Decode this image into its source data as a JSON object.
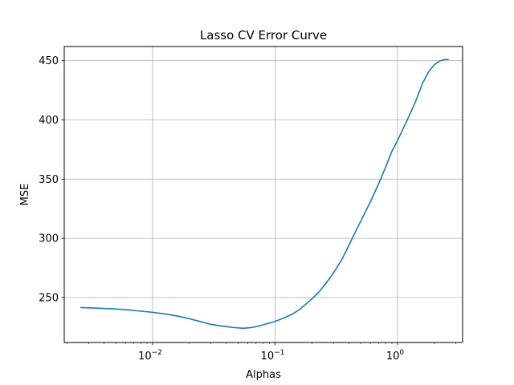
{
  "chart_data": {
    "type": "line",
    "title": "Lasso CV Error Curve",
    "xlabel": "Alphas",
    "ylabel": "MSE",
    "xscale": "log",
    "xlim": [
      0.0019,
      3.4
    ],
    "ylim": [
      212,
      462
    ],
    "grid": true,
    "line_color": "#1f77b4",
    "x_ticks": [
      {
        "value": 0.01,
        "base": "10",
        "exp": "−2"
      },
      {
        "value": 0.1,
        "base": "10",
        "exp": "−1"
      },
      {
        "value": 1,
        "base": "10",
        "exp": "0"
      }
    ],
    "y_ticks": [
      {
        "value": 250,
        "label": "250"
      },
      {
        "value": 300,
        "label": "300"
      },
      {
        "value": 350,
        "label": "350"
      },
      {
        "value": 400,
        "label": "400"
      },
      {
        "value": 450,
        "label": "450"
      }
    ],
    "series": [
      {
        "x": [
          0.0026,
          0.0035,
          0.005,
          0.0065,
          0.008,
          0.01,
          0.013,
          0.016,
          0.02,
          0.025,
          0.03,
          0.035,
          0.04,
          0.045,
          0.05,
          0.055,
          0.06,
          0.065,
          0.07,
          0.08,
          0.09,
          0.1,
          0.12,
          0.14,
          0.16,
          0.18,
          0.2,
          0.23,
          0.26,
          0.3,
          0.35,
          0.4,
          0.45,
          0.5,
          0.6,
          0.7,
          0.8,
          0.9,
          1.0,
          1.2,
          1.4,
          1.6,
          1.8,
          2.0,
          2.2,
          2.4,
          2.6
        ],
        "y": [
          241.5,
          241.0,
          240.3,
          239.4,
          238.5,
          237.5,
          235.9,
          234.3,
          232.1,
          229.4,
          227.3,
          226.2,
          225.4,
          224.7,
          224.3,
          224.1,
          224.3,
          224.7,
          225.4,
          226.9,
          228.4,
          229.8,
          233.0,
          236.2,
          240.2,
          244.7,
          248.8,
          255.1,
          261.9,
          270.8,
          281.9,
          293.8,
          304.8,
          314.3,
          330.8,
          345.9,
          360.2,
          373.5,
          382.5,
          399.9,
          415.2,
          430.9,
          440.9,
          446.7,
          449.6,
          450.9,
          451.0
        ]
      }
    ]
  }
}
